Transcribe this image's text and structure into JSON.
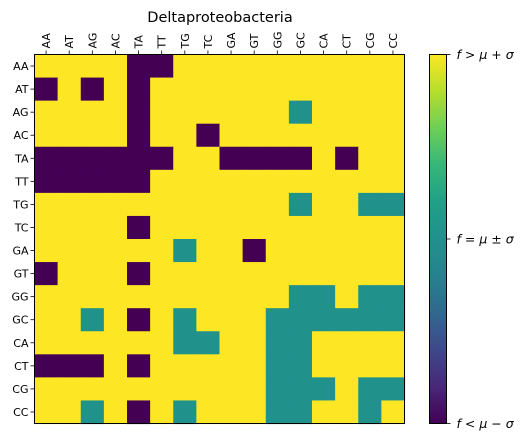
{
  "chart_data": {
    "type": "heatmap",
    "title": "Deltaproteobacteria",
    "x_categories": [
      "AA",
      "AT",
      "AG",
      "AC",
      "TA",
      "TT",
      "TG",
      "TC",
      "GA",
      "GT",
      "GG",
      "GC",
      "CA",
      "CT",
      "CG",
      "CC"
    ],
    "y_categories": [
      "AA",
      "AT",
      "AG",
      "AC",
      "TA",
      "TT",
      "TG",
      "TC",
      "GA",
      "GT",
      "GG",
      "GC",
      "CA",
      "CT",
      "CG",
      "CC"
    ],
    "value_encoding": {
      "0": "f < μ − σ",
      "1": "f = μ ± σ",
      "2": "f > μ + σ"
    },
    "colorbar_labels": [
      "f > μ + σ",
      "f = μ ± σ",
      "f < μ − σ"
    ],
    "colorbar_label_values": [
      2,
      1,
      0
    ],
    "colormap": [
      "#440154",
      "#21918c",
      "#fde725"
    ],
    "values": [
      [
        2,
        2,
        2,
        2,
        0,
        0,
        2,
        2,
        2,
        2,
        2,
        2,
        2,
        2,
        2,
        2
      ],
      [
        0,
        2,
        0,
        2,
        0,
        2,
        2,
        2,
        2,
        2,
        2,
        2,
        2,
        2,
        2,
        2
      ],
      [
        2,
        2,
        2,
        2,
        0,
        2,
        2,
        2,
        2,
        2,
        2,
        1,
        2,
        2,
        2,
        2
      ],
      [
        2,
        2,
        2,
        2,
        0,
        2,
        2,
        0,
        2,
        2,
        2,
        2,
        2,
        2,
        2,
        2
      ],
      [
        0,
        0,
        0,
        0,
        0,
        0,
        2,
        2,
        0,
        0,
        0,
        0,
        2,
        0,
        2,
        2
      ],
      [
        0,
        0,
        0,
        0,
        0,
        2,
        2,
        2,
        2,
        2,
        2,
        2,
        2,
        2,
        2,
        2
      ],
      [
        2,
        2,
        2,
        2,
        2,
        2,
        2,
        2,
        2,
        2,
        2,
        1,
        2,
        2,
        1,
        1
      ],
      [
        2,
        2,
        2,
        2,
        0,
        2,
        2,
        2,
        2,
        2,
        2,
        2,
        2,
        2,
        2,
        2
      ],
      [
        2,
        2,
        2,
        2,
        2,
        2,
        1,
        2,
        2,
        0,
        2,
        2,
        2,
        2,
        2,
        2
      ],
      [
        0,
        2,
        2,
        2,
        0,
        2,
        2,
        2,
        2,
        2,
        2,
        2,
        2,
        2,
        2,
        2
      ],
      [
        2,
        2,
        2,
        2,
        2,
        2,
        2,
        2,
        2,
        2,
        2,
        1,
        1,
        2,
        1,
        1
      ],
      [
        2,
        2,
        1,
        2,
        0,
        2,
        1,
        2,
        2,
        2,
        1,
        1,
        1,
        1,
        1,
        1
      ],
      [
        2,
        2,
        2,
        2,
        2,
        2,
        1,
        1,
        2,
        2,
        1,
        1,
        2,
        2,
        2,
        2
      ],
      [
        0,
        0,
        0,
        2,
        0,
        2,
        2,
        2,
        2,
        2,
        1,
        1,
        2,
        2,
        2,
        2
      ],
      [
        2,
        2,
        2,
        2,
        2,
        2,
        2,
        2,
        2,
        2,
        1,
        1,
        1,
        2,
        1,
        1
      ],
      [
        2,
        2,
        1,
        2,
        0,
        2,
        1,
        2,
        2,
        2,
        1,
        1,
        2,
        2,
        1,
        2
      ]
    ]
  }
}
